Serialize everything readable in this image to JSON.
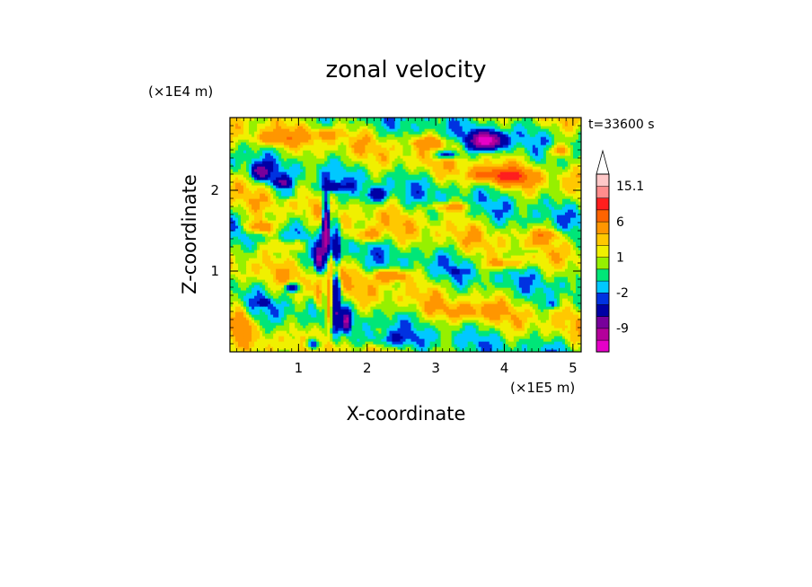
{
  "chart_data": {
    "type": "heatmap",
    "title": "zonal velocity",
    "xlabel": "X-coordinate",
    "ylabel": "Z-coordinate",
    "x_unit": "(×1E5 m)",
    "y_unit": "(×1E4 m)",
    "time_label": "t=33600 s",
    "xlim": [
      0,
      5.12
    ],
    "ylim": [
      0,
      2.9
    ],
    "xticks": [
      "1",
      "2",
      "3",
      "4",
      "5"
    ],
    "yticks": [
      "1",
      "2"
    ],
    "x_tick_values": [
      1,
      2,
      3,
      4,
      5
    ],
    "y_tick_values": [
      1,
      2
    ],
    "colorbar": {
      "labels": [
        "15.1",
        "6",
        "1",
        "-2",
        "-9"
      ],
      "label_values": [
        15.1,
        6,
        1,
        -2,
        -9
      ],
      "levels": [
        -15,
        -12,
        -9,
        -6,
        -3,
        -2,
        -1,
        0,
        1,
        2,
        3,
        6,
        9,
        12,
        15.1
      ],
      "colors": [
        "#e600c8",
        "#b4009b",
        "#78009b",
        "#0000a5",
        "#0032e1",
        "#00c8ff",
        "#00e678",
        "#96f000",
        "#f0f000",
        "#ffc800",
        "#ff9600",
        "#ff6400",
        "#ff1e1e",
        "#ff8c8c",
        "#ffc8c8"
      ],
      "extend_max": true
    },
    "features": [
      {
        "x": 1.4,
        "z": 1.55,
        "v": -12,
        "sx": 0.05,
        "sz": 0.38
      },
      {
        "x": 1.3,
        "z": 1.15,
        "v": -9,
        "sx": 0.06,
        "sz": 0.18
      },
      {
        "x": 1.55,
        "z": 1.0,
        "v": -9,
        "sx": 0.07,
        "sz": 0.55
      },
      {
        "x": 1.7,
        "z": 0.4,
        "v": -8,
        "sx": 0.06,
        "sz": 0.12
      },
      {
        "x": 1.2,
        "z": 0.1,
        "v": -6,
        "sx": 0.1,
        "sz": 0.08
      },
      {
        "x": 1.45,
        "z": 0.55,
        "v": 5,
        "sx": 0.05,
        "sz": 0.35
      },
      {
        "x": 1.55,
        "z": 1.05,
        "v": 8,
        "sx": 0.1,
        "sz": 0.18
      },
      {
        "x": 1.3,
        "z": 0.7,
        "v": 4,
        "sx": 0.06,
        "sz": 0.2
      },
      {
        "x": 3.75,
        "z": 2.62,
        "v": -14,
        "sx": 0.22,
        "sz": 0.1
      },
      {
        "x": 4.1,
        "z": 2.18,
        "v": 8,
        "sx": 0.28,
        "sz": 0.1
      },
      {
        "x": 3.15,
        "z": 2.45,
        "v": -6,
        "sx": 0.16,
        "sz": 0.05
      },
      {
        "x": 3.7,
        "z": 2.2,
        "v": 5,
        "sx": 0.22,
        "sz": 0.08
      },
      {
        "x": 0.45,
        "z": 2.23,
        "v": -7,
        "sx": 0.14,
        "sz": 0.09
      },
      {
        "x": 0.75,
        "z": 2.1,
        "v": -6,
        "sx": 0.14,
        "sz": 0.07
      },
      {
        "x": 1.5,
        "z": 2.05,
        "v": -4,
        "sx": 0.18,
        "sz": 0.06
      },
      {
        "x": 2.15,
        "z": 1.95,
        "v": -5,
        "sx": 0.14,
        "sz": 0.08
      },
      {
        "x": 0.85,
        "z": 1.95,
        "v": -2.5,
        "sx": 0.12,
        "sz": 0.05
      },
      {
        "x": 0.9,
        "z": 0.8,
        "v": -7,
        "sx": 0.1,
        "sz": 0.05
      },
      {
        "x": 0.5,
        "z": 0.62,
        "v": -4,
        "sx": 0.08,
        "sz": 0.05
      },
      {
        "x": 4.7,
        "z": 0.6,
        "v": -2.5,
        "sx": 0.1,
        "sz": 0.05
      },
      {
        "x": 3.3,
        "z": 1.0,
        "v": -2.5,
        "sx": 0.08,
        "sz": 0.05
      },
      {
        "x": 2.3,
        "z": 0.15,
        "v": -2.5,
        "sx": 0.35,
        "sz": 0.09
      },
      {
        "x": 4.4,
        "z": 1.25,
        "v": -2.5,
        "sx": 0.12,
        "sz": 0.05
      },
      {
        "x": 0.15,
        "z": 0.4,
        "v": 4,
        "sx": 0.12,
        "sz": 0.2
      },
      {
        "x": 0.45,
        "z": 1.55,
        "v": 5,
        "sx": 0.2,
        "sz": 0.08
      },
      {
        "x": 0.9,
        "z": 1.32,
        "v": 3,
        "sx": 0.3,
        "sz": 0.08
      },
      {
        "x": 2.35,
        "z": 0.95,
        "v": 5,
        "sx": 0.25,
        "sz": 0.08
      },
      {
        "x": 2.0,
        "z": 1.45,
        "v": 4,
        "sx": 0.2,
        "sz": 0.08
      },
      {
        "x": 3.2,
        "z": 1.8,
        "v": 4,
        "sx": 0.3,
        "sz": 0.06
      },
      {
        "x": 4.0,
        "z": 1.1,
        "v": 4,
        "sx": 0.25,
        "sz": 0.07
      },
      {
        "x": 4.6,
        "z": 1.45,
        "v": 4,
        "sx": 0.2,
        "sz": 0.07
      },
      {
        "x": 0.7,
        "z": 2.65,
        "v": 4,
        "sx": 0.3,
        "sz": 0.08
      },
      {
        "x": 2.9,
        "z": 2.6,
        "v": 4,
        "sx": 0.25,
        "sz": 0.07
      },
      {
        "x": 4.8,
        "z": 2.5,
        "v": 4,
        "sx": 0.2,
        "sz": 0.08
      },
      {
        "x": 1.4,
        "z": 2.7,
        "v": 3,
        "sx": 0.2,
        "sz": 0.07
      },
      {
        "x": 3.5,
        "z": 0.5,
        "v": 2.5,
        "sx": 0.4,
        "sz": 0.1
      }
    ]
  }
}
